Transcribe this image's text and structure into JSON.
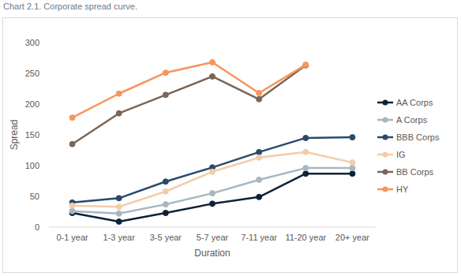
{
  "chart_data": {
    "type": "line",
    "title": "Chart 2.1. Corporate spread curve.",
    "x_label": "Duration",
    "y_label": "Spread",
    "categories": [
      "0-1 year",
      "1-3 year",
      "3-5 year",
      "5-7 year",
      "7-11 year",
      "11-20 year",
      "20+ year"
    ],
    "series": [
      {
        "name": "AA Corps",
        "color": "#0e2236",
        "values": [
          23,
          9,
          23,
          38,
          49,
          87,
          87
        ]
      },
      {
        "name": "A Corps",
        "color": "#a7b7c2",
        "values": [
          26,
          22,
          37,
          55,
          77,
          96,
          96
        ]
      },
      {
        "name": "BBB Corps",
        "color": "#2b4a6a",
        "values": [
          40,
          47,
          74,
          97,
          122,
          145,
          146
        ]
      },
      {
        "name": "IG",
        "color": "#f2cda9",
        "values": [
          35,
          33,
          58,
          90,
          113,
          122,
          105
        ]
      },
      {
        "name": "BB Corps",
        "color": "#7b6556",
        "values": [
          135,
          185,
          215,
          245,
          208,
          263,
          null
        ]
      },
      {
        "name": "HY",
        "color": "#f7955a",
        "values": [
          178,
          217,
          251,
          268,
          218,
          264,
          null
        ]
      }
    ],
    "ylim": [
      0,
      300
    ],
    "yticks": [
      0,
      50,
      100,
      150,
      200,
      250,
      300
    ],
    "grid": false,
    "legend": "right",
    "marker": "circle"
  }
}
